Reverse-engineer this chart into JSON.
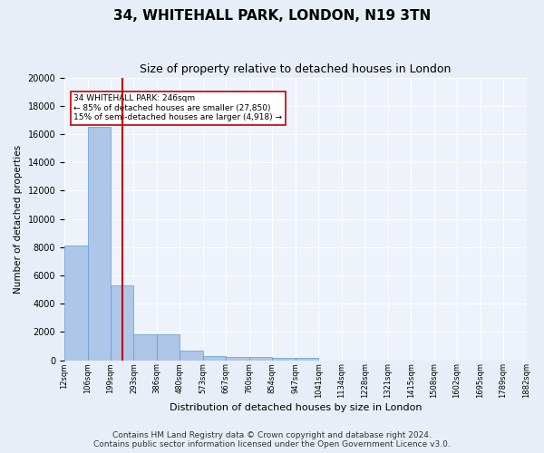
{
  "title": "34, WHITEHALL PARK, LONDON, N19 3TN",
  "subtitle": "Size of property relative to detached houses in London",
  "xlabel": "Distribution of detached houses by size in London",
  "ylabel": "Number of detached properties",
  "bar_values": [
    8100,
    16500,
    5300,
    1800,
    1800,
    700,
    300,
    200,
    200,
    150,
    150,
    0,
    0,
    0,
    0,
    0,
    0,
    0,
    0,
    0
  ],
  "bin_edge_labels": [
    "12sqm",
    "106sqm",
    "199sqm",
    "293sqm",
    "386sqm",
    "480sqm",
    "573sqm",
    "667sqm",
    "760sqm",
    "854sqm",
    "947sqm",
    "1041sqm",
    "1134sqm",
    "1228sqm",
    "1321sqm",
    "1415sqm",
    "1508sqm",
    "1602sqm",
    "1695sqm",
    "1789sqm",
    "1882sqm"
  ],
  "bar_color": "#aec6e8",
  "bar_edge_color": "#5b9bd5",
  "vline_x": 2.5,
  "vline_color": "#c00000",
  "annotation_text": "34 WHITEHALL PARK: 246sqm\n← 85% of detached houses are smaller (27,850)\n15% of semi-detached houses are larger (4,918) →",
  "annotation_box_color": "white",
  "annotation_box_edge": "#c00000",
  "ylim": [
    0,
    20000
  ],
  "yticks": [
    0,
    2000,
    4000,
    6000,
    8000,
    10000,
    12000,
    14000,
    16000,
    18000,
    20000
  ],
  "footnote": "Contains HM Land Registry data © Crown copyright and database right 2024.\nContains public sector information licensed under the Open Government Licence v3.0.",
  "bg_color": "#e8eef7",
  "plot_bg_color": "#edf2fb",
  "title_fontsize": 11,
  "subtitle_fontsize": 9,
  "footnote_fontsize": 6.5
}
